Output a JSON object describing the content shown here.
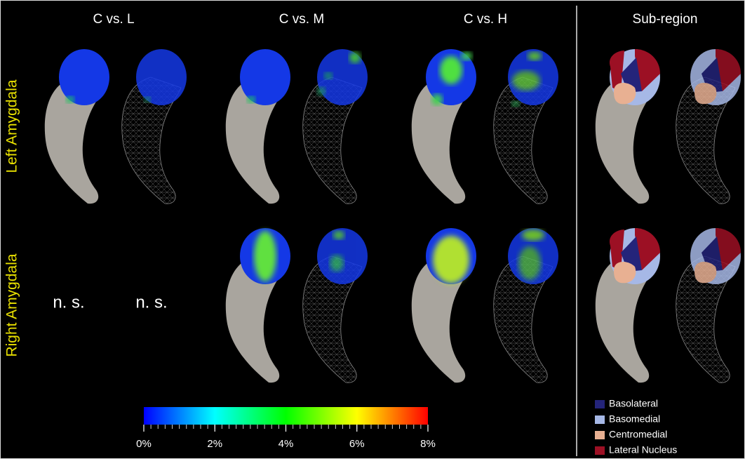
{
  "columns": [
    "C vs. L",
    "C vs. M",
    "C vs. H",
    "Sub-region"
  ],
  "rows": [
    "Left Amygdala",
    "Right Amygdala"
  ],
  "not_significant": [
    "n. s.",
    "n. s."
  ],
  "colorbar": {
    "lim": [
      0,
      8
    ],
    "ticks": [
      {
        "value": 0,
        "label": "0%"
      },
      {
        "value": 2,
        "label": "2%"
      },
      {
        "value": 4,
        "label": "4%"
      },
      {
        "value": 6,
        "label": "6%"
      },
      {
        "value": 8,
        "label": "8%"
      }
    ],
    "colors": [
      "#0000ff",
      "#00ffff",
      "#00ff00",
      "#ffff00",
      "#ff0000"
    ]
  },
  "legend": [
    {
      "label": "Basolateral",
      "color": "#24247a"
    },
    {
      "label": "Basomedial",
      "color": "#a6b8e6"
    },
    {
      "label": "Centromedial",
      "color": "#e8b092"
    },
    {
      "label": "Lateral Nucleus",
      "color": "#9c1024"
    }
  ]
}
